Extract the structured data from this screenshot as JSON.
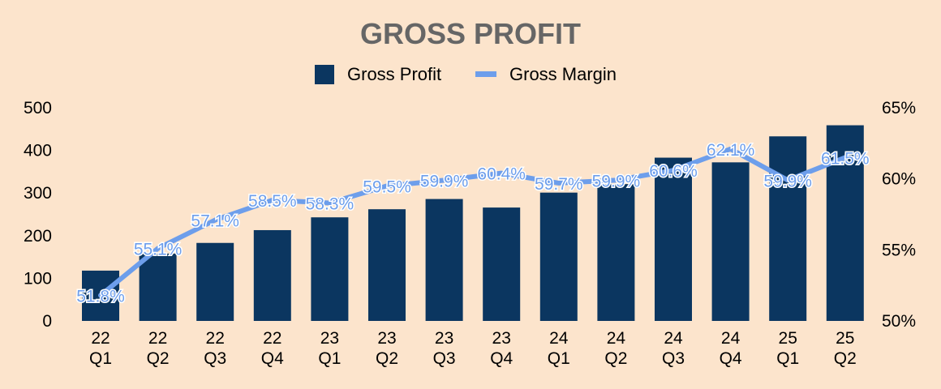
{
  "chart_data": {
    "type": "bar",
    "title": "GROSS PROFIT",
    "categories": [
      [
        "22",
        "Q1"
      ],
      [
        "22",
        "Q2"
      ],
      [
        "22",
        "Q3"
      ],
      [
        "22",
        "Q4"
      ],
      [
        "23",
        "Q1"
      ],
      [
        "23",
        "Q2"
      ],
      [
        "23",
        "Q3"
      ],
      [
        "23",
        "Q4"
      ],
      [
        "24",
        "Q1"
      ],
      [
        "24",
        "Q2"
      ],
      [
        "24",
        "Q3"
      ],
      [
        "24",
        "Q4"
      ],
      [
        "25",
        "Q1"
      ],
      [
        "25",
        "Q2"
      ]
    ],
    "series": [
      {
        "name": "Gross Profit",
        "type": "bar",
        "axis": "left",
        "color": "#0b3660",
        "values": [
          118,
          158,
          183,
          213,
          243,
          262,
          286,
          266,
          301,
          321,
          383,
          372,
          433,
          459
        ]
      },
      {
        "name": "Gross Margin",
        "type": "line",
        "axis": "right",
        "color": "#6d9eeb",
        "values": [
          51.8,
          55.1,
          57.1,
          58.5,
          58.3,
          59.5,
          59.9,
          60.4,
          59.7,
          59.9,
          60.6,
          62.1,
          59.9,
          61.5
        ],
        "labels": [
          "51.8%",
          "55.1%",
          "57.1%",
          "58.5%",
          "58.3%",
          "59.5%",
          "59.9%",
          "60.4%",
          "59.7%",
          "59.9%",
          "60.6%",
          "62.1%",
          "59.9%",
          "61.5%"
        ]
      }
    ],
    "y_left": {
      "min": 0,
      "max": 500,
      "ticks": [
        "0",
        "100",
        "200",
        "300",
        "400",
        "500"
      ]
    },
    "y_right": {
      "min": 50,
      "max": 65,
      "ticks": [
        "50%",
        "55%",
        "60%",
        "65%"
      ]
    },
    "legend_position": "top-center",
    "grid": false,
    "background": "#fce4cc"
  }
}
